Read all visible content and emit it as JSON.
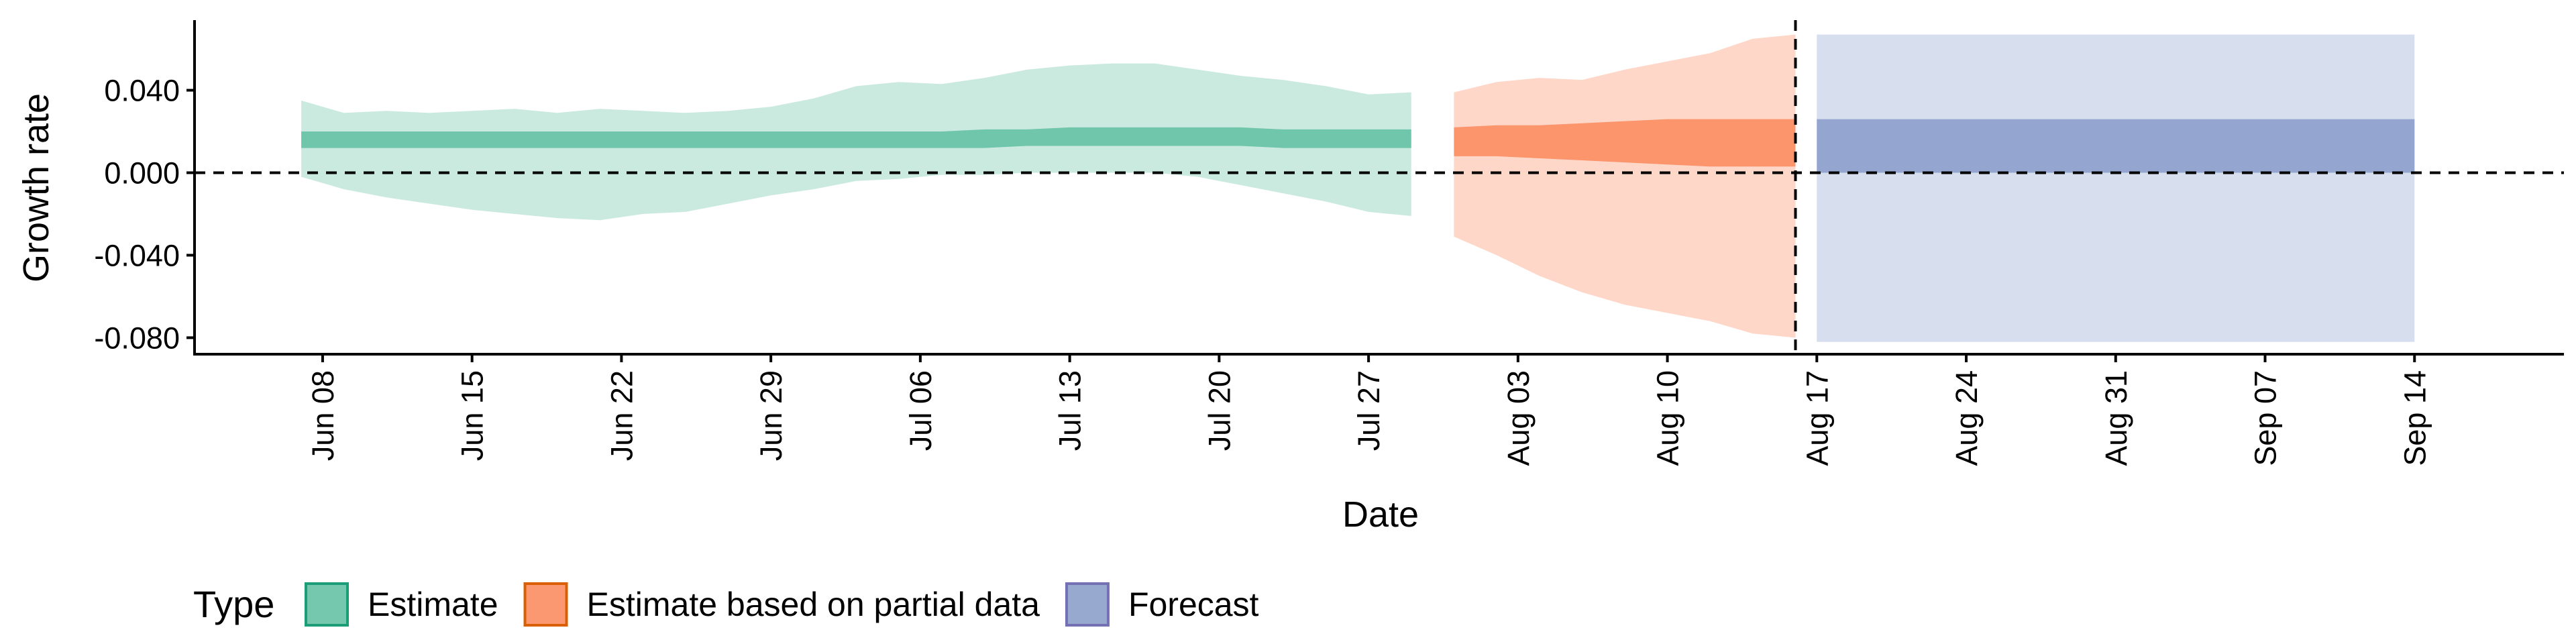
{
  "chart_data": {
    "type": "area",
    "xlabel": "Date",
    "ylabel": "Growth rate",
    "ylim": [
      -0.088,
      0.074
    ],
    "xlim": [
      "2020-06-02",
      "2020-09-21"
    ],
    "y_ticks": [
      {
        "value": 0.04,
        "label": "0.040"
      },
      {
        "value": 0.0,
        "label": "0.000"
      },
      {
        "value": -0.04,
        "label": "-0.040"
      },
      {
        "value": -0.08,
        "label": "-0.080"
      }
    ],
    "x_ticks": [
      {
        "date": "2020-06-08",
        "label": "Jun 08"
      },
      {
        "date": "2020-06-15",
        "label": "Jun 15"
      },
      {
        "date": "2020-06-22",
        "label": "Jun 22"
      },
      {
        "date": "2020-06-29",
        "label": "Jun 29"
      },
      {
        "date": "2020-07-06",
        "label": "Jul 06"
      },
      {
        "date": "2020-07-13",
        "label": "Jul 13"
      },
      {
        "date": "2020-07-20",
        "label": "Jul 20"
      },
      {
        "date": "2020-07-27",
        "label": "Jul 27"
      },
      {
        "date": "2020-08-03",
        "label": "Aug 03"
      },
      {
        "date": "2020-08-10",
        "label": "Aug 10"
      },
      {
        "date": "2020-08-17",
        "label": "Aug 17"
      },
      {
        "date": "2020-08-24",
        "label": "Aug 24"
      },
      {
        "date": "2020-08-31",
        "label": "Aug 31"
      },
      {
        "date": "2020-09-07",
        "label": "Sep 07"
      },
      {
        "date": "2020-09-14",
        "label": "Sep 14"
      }
    ],
    "reference_lines": {
      "y": 0.0,
      "date": "2020-08-16"
    },
    "grid": false,
    "legend": {
      "title": "Type",
      "position": "bottom",
      "entries": [
        "Estimate",
        "Estimate based on partial data",
        "Forecast"
      ]
    },
    "series": [
      {
        "name": "Estimate",
        "fill": "#66c2a5",
        "border": "#1b9e77",
        "x": [
          "2020-06-07",
          "2020-06-09",
          "2020-06-11",
          "2020-06-13",
          "2020-06-15",
          "2020-06-17",
          "2020-06-19",
          "2020-06-21",
          "2020-06-23",
          "2020-06-25",
          "2020-06-27",
          "2020-06-29",
          "2020-07-01",
          "2020-07-03",
          "2020-07-05",
          "2020-07-07",
          "2020-07-09",
          "2020-07-11",
          "2020-07-13",
          "2020-07-15",
          "2020-07-17",
          "2020-07-19",
          "2020-07-21",
          "2020-07-23",
          "2020-07-25",
          "2020-07-27",
          "2020-07-29"
        ],
        "upper90": [
          0.035,
          0.029,
          0.03,
          0.029,
          0.03,
          0.031,
          0.029,
          0.031,
          0.03,
          0.029,
          0.03,
          0.032,
          0.036,
          0.042,
          0.044,
          0.043,
          0.046,
          0.05,
          0.052,
          0.053,
          0.053,
          0.05,
          0.047,
          0.045,
          0.042,
          0.038,
          0.039
        ],
        "upper50": [
          0.02,
          0.02,
          0.02,
          0.02,
          0.02,
          0.02,
          0.02,
          0.02,
          0.02,
          0.02,
          0.02,
          0.02,
          0.02,
          0.02,
          0.02,
          0.02,
          0.021,
          0.021,
          0.022,
          0.022,
          0.022,
          0.022,
          0.022,
          0.021,
          0.021,
          0.021,
          0.021
        ],
        "lower50": [
          0.012,
          0.012,
          0.012,
          0.012,
          0.012,
          0.012,
          0.012,
          0.012,
          0.012,
          0.012,
          0.012,
          0.012,
          0.012,
          0.012,
          0.012,
          0.012,
          0.012,
          0.013,
          0.013,
          0.013,
          0.013,
          0.013,
          0.013,
          0.012,
          0.012,
          0.012,
          0.012
        ],
        "lower90": [
          -0.002,
          -0.008,
          -0.012,
          -0.015,
          -0.018,
          -0.02,
          -0.022,
          -0.023,
          -0.02,
          -0.019,
          -0.015,
          -0.011,
          -0.008,
          -0.004,
          -0.003,
          -0.001,
          -0.001,
          0.0,
          0.0,
          0.0,
          0.0,
          -0.002,
          -0.006,
          -0.01,
          -0.014,
          -0.019,
          -0.021
        ]
      },
      {
        "name": "Estimate based on partial data",
        "fill": "#fc8d62",
        "border": "#d95f02",
        "x": [
          "2020-07-31",
          "2020-08-02",
          "2020-08-04",
          "2020-08-06",
          "2020-08-08",
          "2020-08-10",
          "2020-08-12",
          "2020-08-14",
          "2020-08-16"
        ],
        "upper90": [
          0.039,
          0.044,
          0.046,
          0.045,
          0.05,
          0.054,
          0.058,
          0.065,
          0.067
        ],
        "upper50": [
          0.022,
          0.023,
          0.023,
          0.024,
          0.025,
          0.026,
          0.026,
          0.026,
          0.026
        ],
        "lower50": [
          0.008,
          0.008,
          0.007,
          0.006,
          0.005,
          0.004,
          0.003,
          0.003,
          0.003
        ],
        "lower90": [
          -0.031,
          -0.04,
          -0.05,
          -0.058,
          -0.064,
          -0.068,
          -0.072,
          -0.078,
          -0.08
        ]
      },
      {
        "name": "Forecast",
        "fill": "#8da0cb",
        "border": "#7570b3",
        "x": [
          "2020-08-17",
          "2020-09-14"
        ],
        "upper90": [
          0.067,
          0.067
        ],
        "upper50": [
          0.026,
          0.026
        ],
        "lower50": [
          0.0,
          0.0
        ],
        "lower90": [
          -0.082,
          -0.082
        ]
      }
    ]
  }
}
